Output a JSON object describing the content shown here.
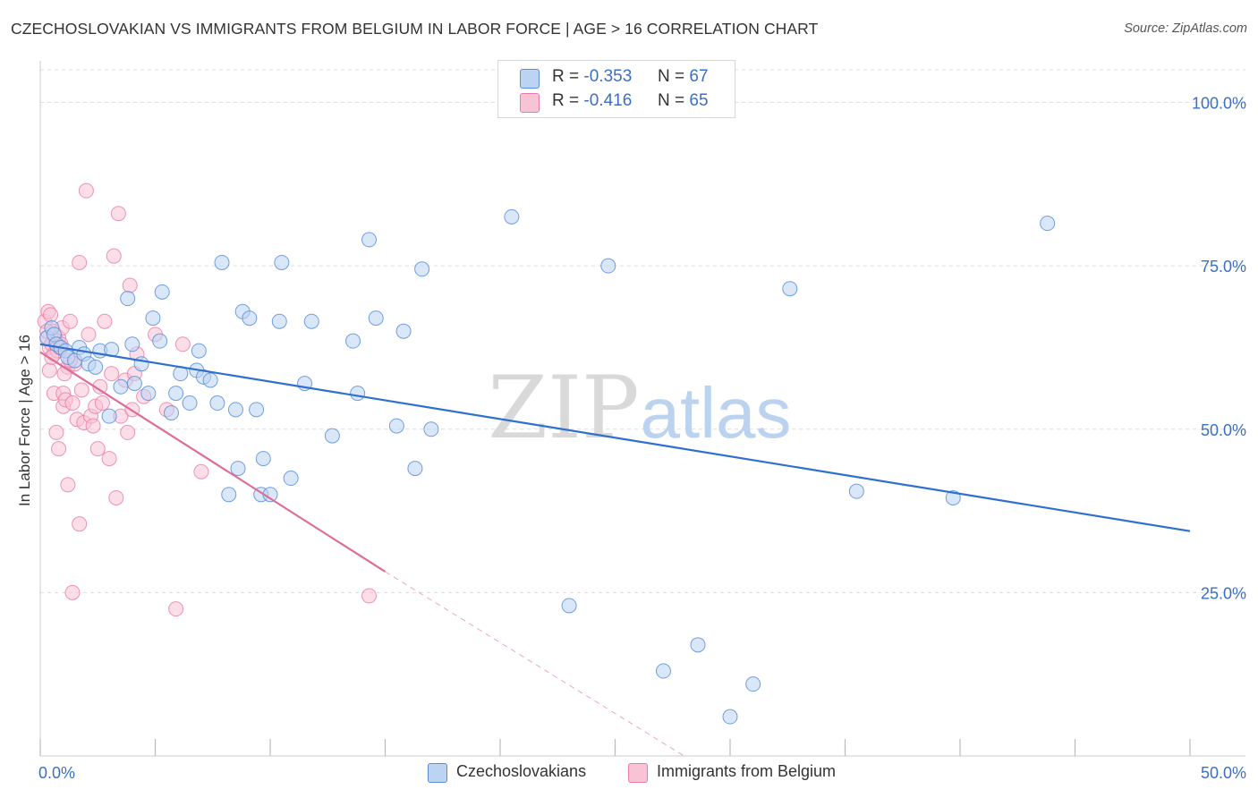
{
  "title": "CZECHOSLOVAKIAN VS IMMIGRANTS FROM BELGIUM IN LABOR FORCE | AGE > 16 CORRELATION CHART",
  "source": "Source: ZipAtlas.com",
  "watermark": {
    "zip": "ZIP",
    "atlas": "atlas"
  },
  "legend": {
    "rows": [
      {
        "r_label": "R =",
        "r_value": "-0.353",
        "n_label": "N =",
        "n_value": "67"
      },
      {
        "r_label": "R =",
        "r_value": "-0.416",
        "n_label": "N =",
        "n_value": "65"
      }
    ]
  },
  "chart_data": {
    "type": "scatter",
    "title": "CZECHOSLOVAKIAN VS IMMIGRANTS FROM BELGIUM IN LABOR FORCE | AGE > 16 CORRELATION CHART",
    "xlabel": "",
    "ylabel": "In Labor Force | Age > 16",
    "xlim": [
      0,
      50
    ],
    "ylim": [
      0,
      105
    ],
    "x_tick_labels": [
      "0.0%",
      "50.0%"
    ],
    "y_ticks": [
      25,
      50,
      75,
      100
    ],
    "y_tick_labels": [
      "25.0%",
      "50.0%",
      "75.0%",
      "100.0%"
    ],
    "grid": true,
    "legend_position": "bottom",
    "colors": {
      "blue": "#5b8fd8",
      "blue_fill": "#bcd3f2",
      "pink": "#e87ba2",
      "pink_fill": "#f7c3d5",
      "blue_line": "#2f6fd0",
      "pink_line": "#e06b96"
    },
    "series": [
      {
        "name": "Czechoslovakians",
        "color": "#5b8fd8",
        "trend": {
          "x": [
            0,
            50
          ],
          "y": [
            63.0,
            34.4
          ],
          "r": -0.353,
          "n": 67
        },
        "points": [
          [
            0.3,
            64.0
          ],
          [
            0.5,
            65.5
          ],
          [
            0.6,
            64.5
          ],
          [
            0.7,
            63.0
          ],
          [
            0.9,
            62.5
          ],
          [
            1.1,
            62.0
          ],
          [
            1.2,
            61.0
          ],
          [
            1.5,
            60.5
          ],
          [
            1.7,
            62.5
          ],
          [
            1.9,
            61.5
          ],
          [
            2.1,
            60.0
          ],
          [
            2.4,
            59.5
          ],
          [
            2.6,
            62.0
          ],
          [
            3.1,
            62.2
          ],
          [
            3.0,
            52.0
          ],
          [
            3.5,
            56.5
          ],
          [
            3.8,
            70.0
          ],
          [
            4.0,
            63.0
          ],
          [
            4.1,
            57.0
          ],
          [
            4.4,
            60.0
          ],
          [
            4.7,
            55.5
          ],
          [
            4.9,
            67.0
          ],
          [
            5.2,
            63.5
          ],
          [
            5.3,
            71.0
          ],
          [
            5.7,
            52.5
          ],
          [
            5.9,
            55.5
          ],
          [
            6.1,
            58.5
          ],
          [
            6.5,
            54.0
          ],
          [
            6.8,
            59.0
          ],
          [
            6.9,
            62.0
          ],
          [
            7.1,
            58.0
          ],
          [
            7.4,
            57.5
          ],
          [
            7.7,
            54.0
          ],
          [
            7.9,
            75.5
          ],
          [
            8.2,
            40.0
          ],
          [
            8.5,
            53.0
          ],
          [
            8.6,
            44.0
          ],
          [
            8.8,
            68.0
          ],
          [
            9.1,
            67.0
          ],
          [
            9.4,
            53.0
          ],
          [
            9.6,
            40.0
          ],
          [
            9.7,
            45.5
          ],
          [
            10.0,
            40.0
          ],
          [
            10.5,
            75.5
          ],
          [
            10.4,
            66.5
          ],
          [
            10.9,
            42.5
          ],
          [
            11.5,
            57.0
          ],
          [
            11.8,
            66.5
          ],
          [
            12.7,
            49.0
          ],
          [
            13.6,
            63.5
          ],
          [
            13.8,
            55.5
          ],
          [
            14.3,
            79.0
          ],
          [
            14.6,
            67.0
          ],
          [
            15.5,
            50.5
          ],
          [
            15.8,
            65.0
          ],
          [
            16.3,
            44.0
          ],
          [
            16.6,
            74.5
          ],
          [
            17.0,
            50.0
          ],
          [
            20.5,
            82.5
          ],
          [
            23.0,
            23.0
          ],
          [
            24.7,
            75.0
          ],
          [
            27.1,
            13.0
          ],
          [
            28.6,
            17.0
          ],
          [
            30.0,
            6.0
          ],
          [
            31.0,
            11.0
          ],
          [
            32.6,
            71.5
          ],
          [
            35.5,
            40.5
          ],
          [
            39.7,
            39.5
          ],
          [
            43.8,
            81.5
          ]
        ]
      },
      {
        "name": "Immigrants from Belgium",
        "color": "#e87ba2",
        "trend": {
          "x": [
            0,
            15
          ],
          "y": [
            61.8,
            28.2
          ],
          "r": -0.416,
          "n": 65,
          "dashed_to": [
            28,
            0
          ]
        },
        "points": [
          [
            0.2,
            66.5
          ],
          [
            0.3,
            64.0
          ],
          [
            0.35,
            68.0
          ],
          [
            0.4,
            62.5
          ],
          [
            0.45,
            67.5
          ],
          [
            0.5,
            63.0
          ],
          [
            0.55,
            65.0
          ],
          [
            0.6,
            61.5
          ],
          [
            0.65,
            64.5
          ],
          [
            0.7,
            63.5
          ],
          [
            0.75,
            62.0
          ],
          [
            0.8,
            64.0
          ],
          [
            0.9,
            63.0
          ],
          [
            1.0,
            53.5
          ],
          [
            0.95,
            65.5
          ],
          [
            0.6,
            55.5
          ],
          [
            0.7,
            49.5
          ],
          [
            0.8,
            47.0
          ],
          [
            1.0,
            55.5
          ],
          [
            1.1,
            54.5
          ],
          [
            1.2,
            59.5
          ],
          [
            1.3,
            66.5
          ],
          [
            1.4,
            54.0
          ],
          [
            1.5,
            60.0
          ],
          [
            1.6,
            51.5
          ],
          [
            1.7,
            75.5
          ],
          [
            1.8,
            56.0
          ],
          [
            1.9,
            51.0
          ],
          [
            2.0,
            86.5
          ],
          [
            2.1,
            64.5
          ],
          [
            2.2,
            52.0
          ],
          [
            2.3,
            50.5
          ],
          [
            2.4,
            53.5
          ],
          [
            2.5,
            47.0
          ],
          [
            2.6,
            56.5
          ],
          [
            2.7,
            54.0
          ],
          [
            2.8,
            66.5
          ],
          [
            3.0,
            45.5
          ],
          [
            3.1,
            58.5
          ],
          [
            3.2,
            76.5
          ],
          [
            3.3,
            39.5
          ],
          [
            3.4,
            83.0
          ],
          [
            3.5,
            52.0
          ],
          [
            3.7,
            57.5
          ],
          [
            3.8,
            49.5
          ],
          [
            3.9,
            72.0
          ],
          [
            4.0,
            53.0
          ],
          [
            4.1,
            58.5
          ],
          [
            4.2,
            61.5
          ],
          [
            4.5,
            55.0
          ],
          [
            5.0,
            64.5
          ],
          [
            5.5,
            53.0
          ],
          [
            5.9,
            22.5
          ],
          [
            6.2,
            63.0
          ],
          [
            7.0,
            43.5
          ],
          [
            1.2,
            41.5
          ],
          [
            1.4,
            25.0
          ],
          [
            1.7,
            35.5
          ],
          [
            14.3,
            24.5
          ],
          [
            0.4,
            59.0
          ],
          [
            0.5,
            61.0
          ],
          [
            0.85,
            62.5
          ],
          [
            1.05,
            58.5
          ],
          [
            1.3,
            60.5
          ],
          [
            0.3,
            65.0
          ]
        ]
      }
    ]
  },
  "y_axis_label": "In Labor Force | Age > 16",
  "x_axis": {
    "min_label": "0.0%",
    "max_label": "50.0%"
  },
  "bottom_legend": [
    {
      "label": "Czechoslovakians"
    },
    {
      "label": "Immigrants from Belgium"
    }
  ]
}
